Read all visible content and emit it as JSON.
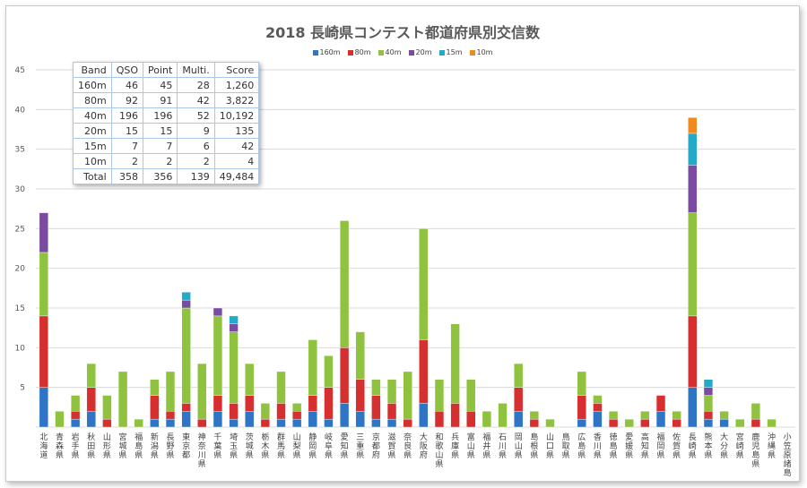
{
  "chart_data": {
    "type": "bar",
    "stacked": true,
    "title": "2018 長崎県コンテスト都道府県別交信数",
    "xlabel": "",
    "ylabel": "",
    "ylim": [
      0,
      45
    ],
    "yticks": [
      0,
      5,
      10,
      15,
      20,
      25,
      30,
      35,
      40,
      45
    ],
    "grid": true,
    "legend_position": "top",
    "categories": [
      "北海道",
      "青森県",
      "岩手県",
      "秋田県",
      "山形県",
      "宮城県",
      "福島県",
      "新潟県",
      "長野県",
      "東京都",
      "神奈川県",
      "千葉県",
      "埼玉県",
      "茨城県",
      "栃木県",
      "群馬県",
      "山梨県",
      "静岡県",
      "岐阜県",
      "愛知県",
      "三重県",
      "京都府",
      "滋賀県",
      "奈良県",
      "大阪府",
      "和歌山県",
      "兵庫県",
      "富山県",
      "福井県",
      "石川県",
      "岡山県",
      "島根県",
      "山口県",
      "鳥取県",
      "広島県",
      "香川県",
      "徳島県",
      "愛媛県",
      "高知県",
      "福岡県",
      "佐賀県",
      "長崎県",
      "熊本県",
      "大分県",
      "宮崎県",
      "鹿児島県",
      "沖縄県",
      "小笠原諸島"
    ],
    "series": [
      {
        "name": "160m",
        "color": "#2e75c6",
        "values": [
          5,
          0,
          1,
          2,
          0,
          0,
          0,
          1,
          1,
          2,
          0,
          2,
          1,
          2,
          0,
          1,
          1,
          2,
          1,
          3,
          2,
          1,
          1,
          0,
          3,
          0,
          0,
          0,
          0,
          0,
          2,
          0,
          0,
          0,
          1,
          2,
          0,
          0,
          0,
          2,
          0,
          5,
          1,
          1,
          0,
          0,
          0,
          0
        ]
      },
      {
        "name": "80m",
        "color": "#d62f2f",
        "values": [
          9,
          0,
          1,
          3,
          1,
          0,
          0,
          3,
          1,
          1,
          1,
          2,
          2,
          2,
          1,
          2,
          1,
          2,
          4,
          7,
          4,
          3,
          2,
          1,
          8,
          2,
          3,
          2,
          0,
          0,
          3,
          1,
          0,
          0,
          3,
          1,
          1,
          0,
          1,
          2,
          1,
          9,
          1,
          0,
          0,
          1,
          0,
          0
        ]
      },
      {
        "name": "40m",
        "color": "#8fc23e",
        "values": [
          8,
          2,
          2,
          3,
          3,
          7,
          1,
          2,
          5,
          12,
          7,
          10,
          9,
          4,
          2,
          4,
          1,
          7,
          4,
          16,
          6,
          2,
          3,
          6,
          14,
          4,
          10,
          4,
          2,
          3,
          3,
          1,
          1,
          0,
          3,
          1,
          1,
          1,
          1,
          0,
          1,
          13,
          2,
          1,
          1,
          2,
          1,
          0
        ]
      },
      {
        "name": "20m",
        "color": "#7a4ba0",
        "values": [
          5,
          0,
          0,
          0,
          0,
          0,
          0,
          0,
          0,
          1,
          0,
          1,
          1,
          0,
          0,
          0,
          0,
          0,
          0,
          0,
          0,
          0,
          0,
          0,
          0,
          0,
          0,
          0,
          0,
          0,
          0,
          0,
          0,
          0,
          0,
          0,
          0,
          0,
          0,
          0,
          0,
          6,
          1,
          0,
          0,
          0,
          0,
          0
        ]
      },
      {
        "name": "15m",
        "color": "#25a9c8",
        "values": [
          0,
          0,
          0,
          0,
          0,
          0,
          0,
          0,
          0,
          1,
          0,
          0,
          1,
          0,
          0,
          0,
          0,
          0,
          0,
          0,
          0,
          0,
          0,
          0,
          0,
          0,
          0,
          0,
          0,
          0,
          0,
          0,
          0,
          0,
          0,
          0,
          0,
          0,
          0,
          0,
          0,
          4,
          1,
          0,
          0,
          0,
          0,
          0
        ]
      },
      {
        "name": "10m",
        "color": "#f08a1c",
        "values": [
          0,
          0,
          0,
          0,
          0,
          0,
          0,
          0,
          0,
          0,
          0,
          0,
          0,
          0,
          0,
          0,
          0,
          0,
          0,
          0,
          0,
          0,
          0,
          0,
          0,
          0,
          0,
          0,
          0,
          0,
          0,
          0,
          0,
          0,
          0,
          0,
          0,
          0,
          0,
          0,
          0,
          2,
          0,
          0,
          0,
          0,
          0,
          0
        ]
      }
    ]
  },
  "score_table": {
    "headers": [
      "Band",
      "QSO",
      "Point",
      "Multi.",
      "Score"
    ],
    "rows": [
      [
        "160m",
        "46",
        "45",
        "28",
        "1,260"
      ],
      [
        "80m",
        "92",
        "91",
        "42",
        "3,822"
      ],
      [
        "40m",
        "196",
        "196",
        "52",
        "10,192"
      ],
      [
        "20m",
        "15",
        "15",
        "9",
        "135"
      ],
      [
        "15m",
        "7",
        "7",
        "6",
        "42"
      ],
      [
        "10m",
        "2",
        "2",
        "2",
        "4"
      ]
    ],
    "total": [
      "Total",
      "358",
      "356",
      "139",
      "49,484"
    ]
  },
  "colors": {
    "grid": "#d9d9d9",
    "axis_text": "#595959",
    "title": "#595959",
    "table_border": "#a9c7e6"
  }
}
